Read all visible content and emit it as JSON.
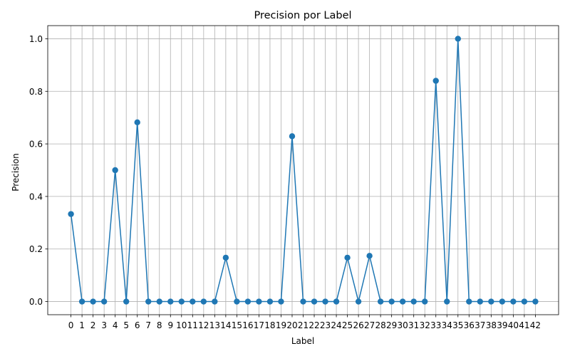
{
  "chart_data": {
    "type": "line",
    "title": "Precision por Label",
    "xlabel": "Label",
    "ylabel": "Precision",
    "x": [
      0,
      1,
      2,
      3,
      4,
      5,
      6,
      7,
      8,
      9,
      10,
      11,
      12,
      13,
      14,
      15,
      16,
      17,
      18,
      19,
      20,
      21,
      22,
      23,
      24,
      25,
      26,
      27,
      28,
      29,
      30,
      31,
      32,
      33,
      34,
      35,
      36,
      37,
      38,
      39,
      40,
      41,
      42
    ],
    "series": [
      {
        "values": [
          0.333,
          0,
          0,
          0,
          0.5,
          0,
          0.682,
          0,
          0,
          0,
          0,
          0,
          0,
          0,
          0.167,
          0,
          0,
          0,
          0,
          0,
          0.629,
          0,
          0,
          0,
          0,
          0.167,
          0,
          0.174,
          0,
          0,
          0,
          0,
          0,
          0.84,
          0,
          1.0,
          0,
          0,
          0,
          0,
          0,
          0,
          0
        ],
        "color": "#1f77b4",
        "marker": "circle"
      }
    ],
    "xlim": [
      -2.1,
      44.1
    ],
    "ylim": [
      -0.05,
      1.05
    ],
    "yticks": [
      0.0,
      0.2,
      0.4,
      0.6,
      0.8,
      1.0
    ],
    "ytick_labels": [
      "0.0",
      "0.2",
      "0.4",
      "0.6",
      "0.8",
      "1.0"
    ],
    "xtick_labels": [
      "0",
      "1",
      "2",
      "3",
      "4",
      "5",
      "6",
      "7",
      "8",
      "9",
      "10",
      "11",
      "12",
      "13",
      "14",
      "15",
      "16",
      "17",
      "18",
      "19",
      "20",
      "21",
      "22",
      "23",
      "24",
      "25",
      "26",
      "27",
      "28",
      "29",
      "30",
      "31",
      "32",
      "33",
      "34",
      "35",
      "36",
      "37",
      "38",
      "39",
      "40",
      "41",
      "42"
    ],
    "grid": true,
    "legend": "none"
  }
}
